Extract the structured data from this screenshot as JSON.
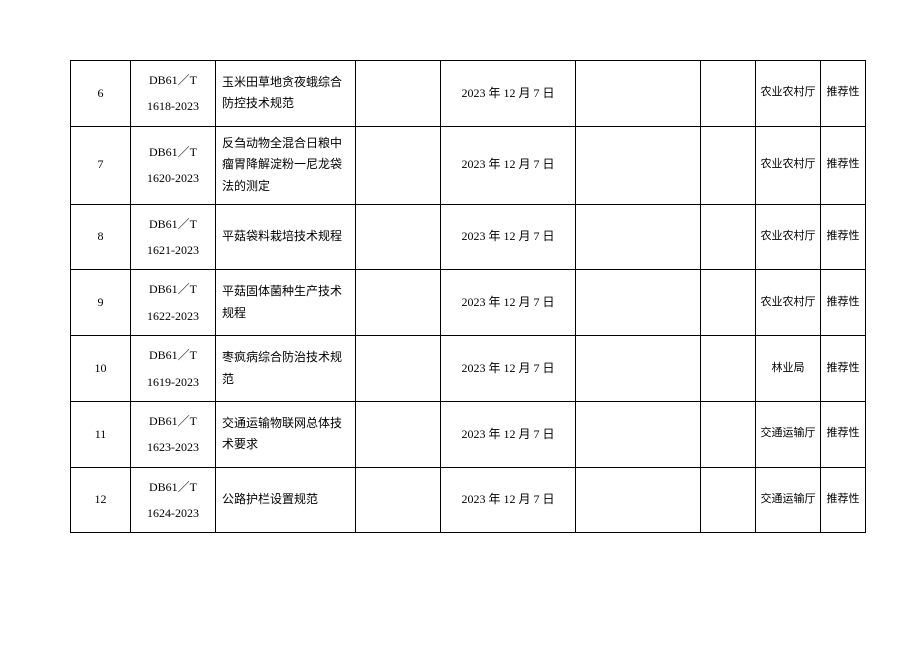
{
  "table": {
    "rows": [
      {
        "num": "6",
        "code_prefix": "DB61／T",
        "code_number": "1618-2023",
        "name": "玉米田草地贪夜蛾综合防控技术规范",
        "date": "2023 年 12 月 7 日",
        "dept": "农业农村厅",
        "type": "推荐性"
      },
      {
        "num": "7",
        "code_prefix": "DB61／T",
        "code_number": "1620-2023",
        "name": "反刍动物全混合日粮中瘤胃降解淀粉一尼龙袋法的测定",
        "date": "2023 年 12 月 7 日",
        "dept": "农业农村厅",
        "type": "推荐性"
      },
      {
        "num": "8",
        "code_prefix": "DB61／T",
        "code_number": "1621-2023",
        "name": "平菇袋料栽培技术规程",
        "date": "2023 年 12 月 7 日",
        "dept": "农业农村厅",
        "type": "推荐性"
      },
      {
        "num": "9",
        "code_prefix": "DB61／T",
        "code_number": "1622-2023",
        "name": "平菇固体菌种生产技术规程",
        "date": "2023 年 12 月 7 日",
        "dept": "农业农村厅",
        "type": "推荐性"
      },
      {
        "num": "10",
        "code_prefix": "DB61／T",
        "code_number": "1619-2023",
        "name": "枣疯病综合防治技术规范",
        "date": "2023 年 12 月 7 日",
        "dept": "林业局",
        "type": "推荐性"
      },
      {
        "num": "11",
        "code_prefix": "DB61／T",
        "code_number": "1623-2023",
        "name": "交通运输物联网总体技术要求",
        "date": "2023 年 12 月 7 日",
        "dept": "交通运输厅",
        "type": "推荐性"
      },
      {
        "num": "12",
        "code_prefix": "DB61／T",
        "code_number": "1624-2023",
        "name": "公路护栏设置规范",
        "date": "2023 年 12 月 7 日",
        "dept": "交通运输厅",
        "type": "推荐性"
      }
    ]
  }
}
